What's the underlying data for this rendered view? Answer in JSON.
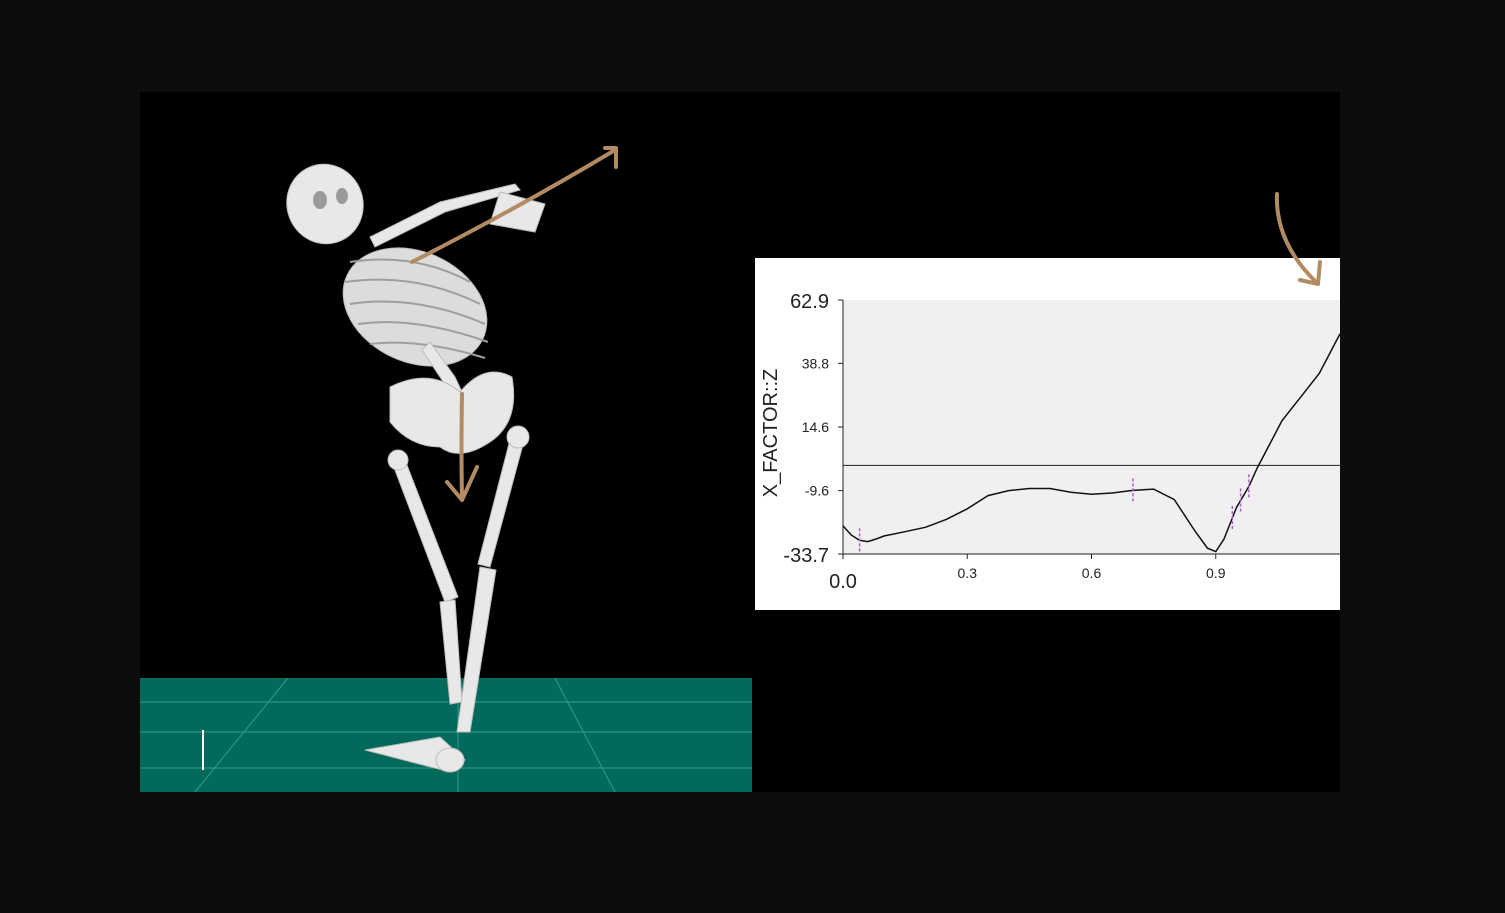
{
  "colors": {
    "page_background": "#0d0d0d",
    "viewport_background": "#000000",
    "floor": "#036a5b",
    "floor_grid": "#3fa79a",
    "bone": "#e8e8e8",
    "annotation_arrow": "#b38b62",
    "plot_background": "#ffffff",
    "plot_area": "#f0f0f0",
    "curve": "#111111",
    "event_marker": "#b05cc8"
  },
  "chart_data": {
    "type": "line",
    "title": "",
    "xlabel": "",
    "ylabel": "X_FACTOR::Z",
    "xlim": [
      0.0,
      1.2
    ],
    "ylim": [
      -33.7,
      62.9
    ],
    "x_ticks": [
      "0.0",
      "0.3",
      "0.6",
      "0.9"
    ],
    "x_tick_values": [
      0.0,
      0.3,
      0.6,
      0.9
    ],
    "y_ticks": [
      "62.9",
      "38.8",
      "14.6",
      "-9.6",
      "-33.7"
    ],
    "y_tick_values": [
      62.9,
      38.8,
      14.6,
      -9.6,
      -33.7
    ],
    "zero_line": 0,
    "series": [
      {
        "x": [
          0.0,
          0.02,
          0.04,
          0.06,
          0.08,
          0.1,
          0.15,
          0.2,
          0.25,
          0.3,
          0.35,
          0.4,
          0.45,
          0.5,
          0.55,
          0.6,
          0.65,
          0.7,
          0.75,
          0.8,
          0.85,
          0.88,
          0.9,
          0.92,
          0.95,
          0.98,
          1.0,
          1.03,
          1.06,
          1.1,
          1.15,
          1.2
        ],
        "y": [
          -23.0,
          -26.5,
          -28.5,
          -29.0,
          -28.0,
          -26.8,
          -25.2,
          -23.5,
          -20.5,
          -16.5,
          -11.5,
          -9.6,
          -8.8,
          -8.8,
          -10.2,
          -11.0,
          -10.5,
          -9.5,
          -9.0,
          -13.0,
          -25.0,
          -31.5,
          -32.8,
          -28.0,
          -16.0,
          -8.0,
          -1.0,
          8.0,
          17.0,
          25.0,
          35.0,
          50.0
        ]
      }
    ],
    "event_markers_x": [
      0.04,
      0.7,
      0.94,
      0.96,
      0.98
    ]
  }
}
